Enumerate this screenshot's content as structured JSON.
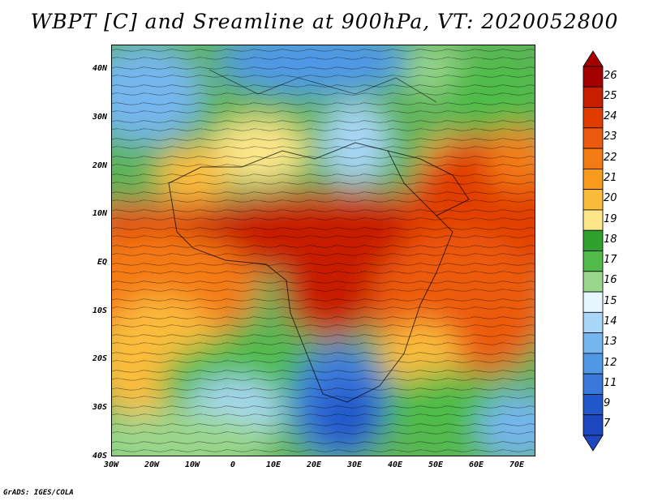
{
  "title": "WBPT [C] and Sreamline at 900hPa, VT: 2020052800",
  "map": {
    "lat_labels": [
      "40N",
      "30N",
      "20N",
      "10N",
      "EQ",
      "10S",
      "20S",
      "30S",
      "40S"
    ],
    "lon_labels": [
      "30W",
      "20W",
      "10W",
      "0",
      "10E",
      "20E",
      "30E",
      "40E",
      "50E",
      "60E",
      "70E"
    ],
    "lat_range": [
      -40,
      45
    ],
    "lon_range": [
      -30,
      75
    ]
  },
  "colorbar": {
    "labels": [
      "26",
      "25",
      "24",
      "23",
      "22",
      "21",
      "20",
      "19",
      "18",
      "17",
      "16",
      "15",
      "14",
      "13",
      "12",
      "11",
      "9",
      "7"
    ],
    "colors": [
      "#a50000",
      "#c81e00",
      "#e03c00",
      "#ec5a10",
      "#f47a16",
      "#f89a1e",
      "#fbbc3c",
      "#fde68a",
      "#2fa12f",
      "#50bb4a",
      "#9ad68c",
      "#e6f6fe",
      "#a8d6f6",
      "#76b6ee",
      "#5097e6",
      "#3a78dc",
      "#2158c9",
      "#1f48c0"
    ]
  },
  "credit": "GrADS: IGES/COLA"
}
